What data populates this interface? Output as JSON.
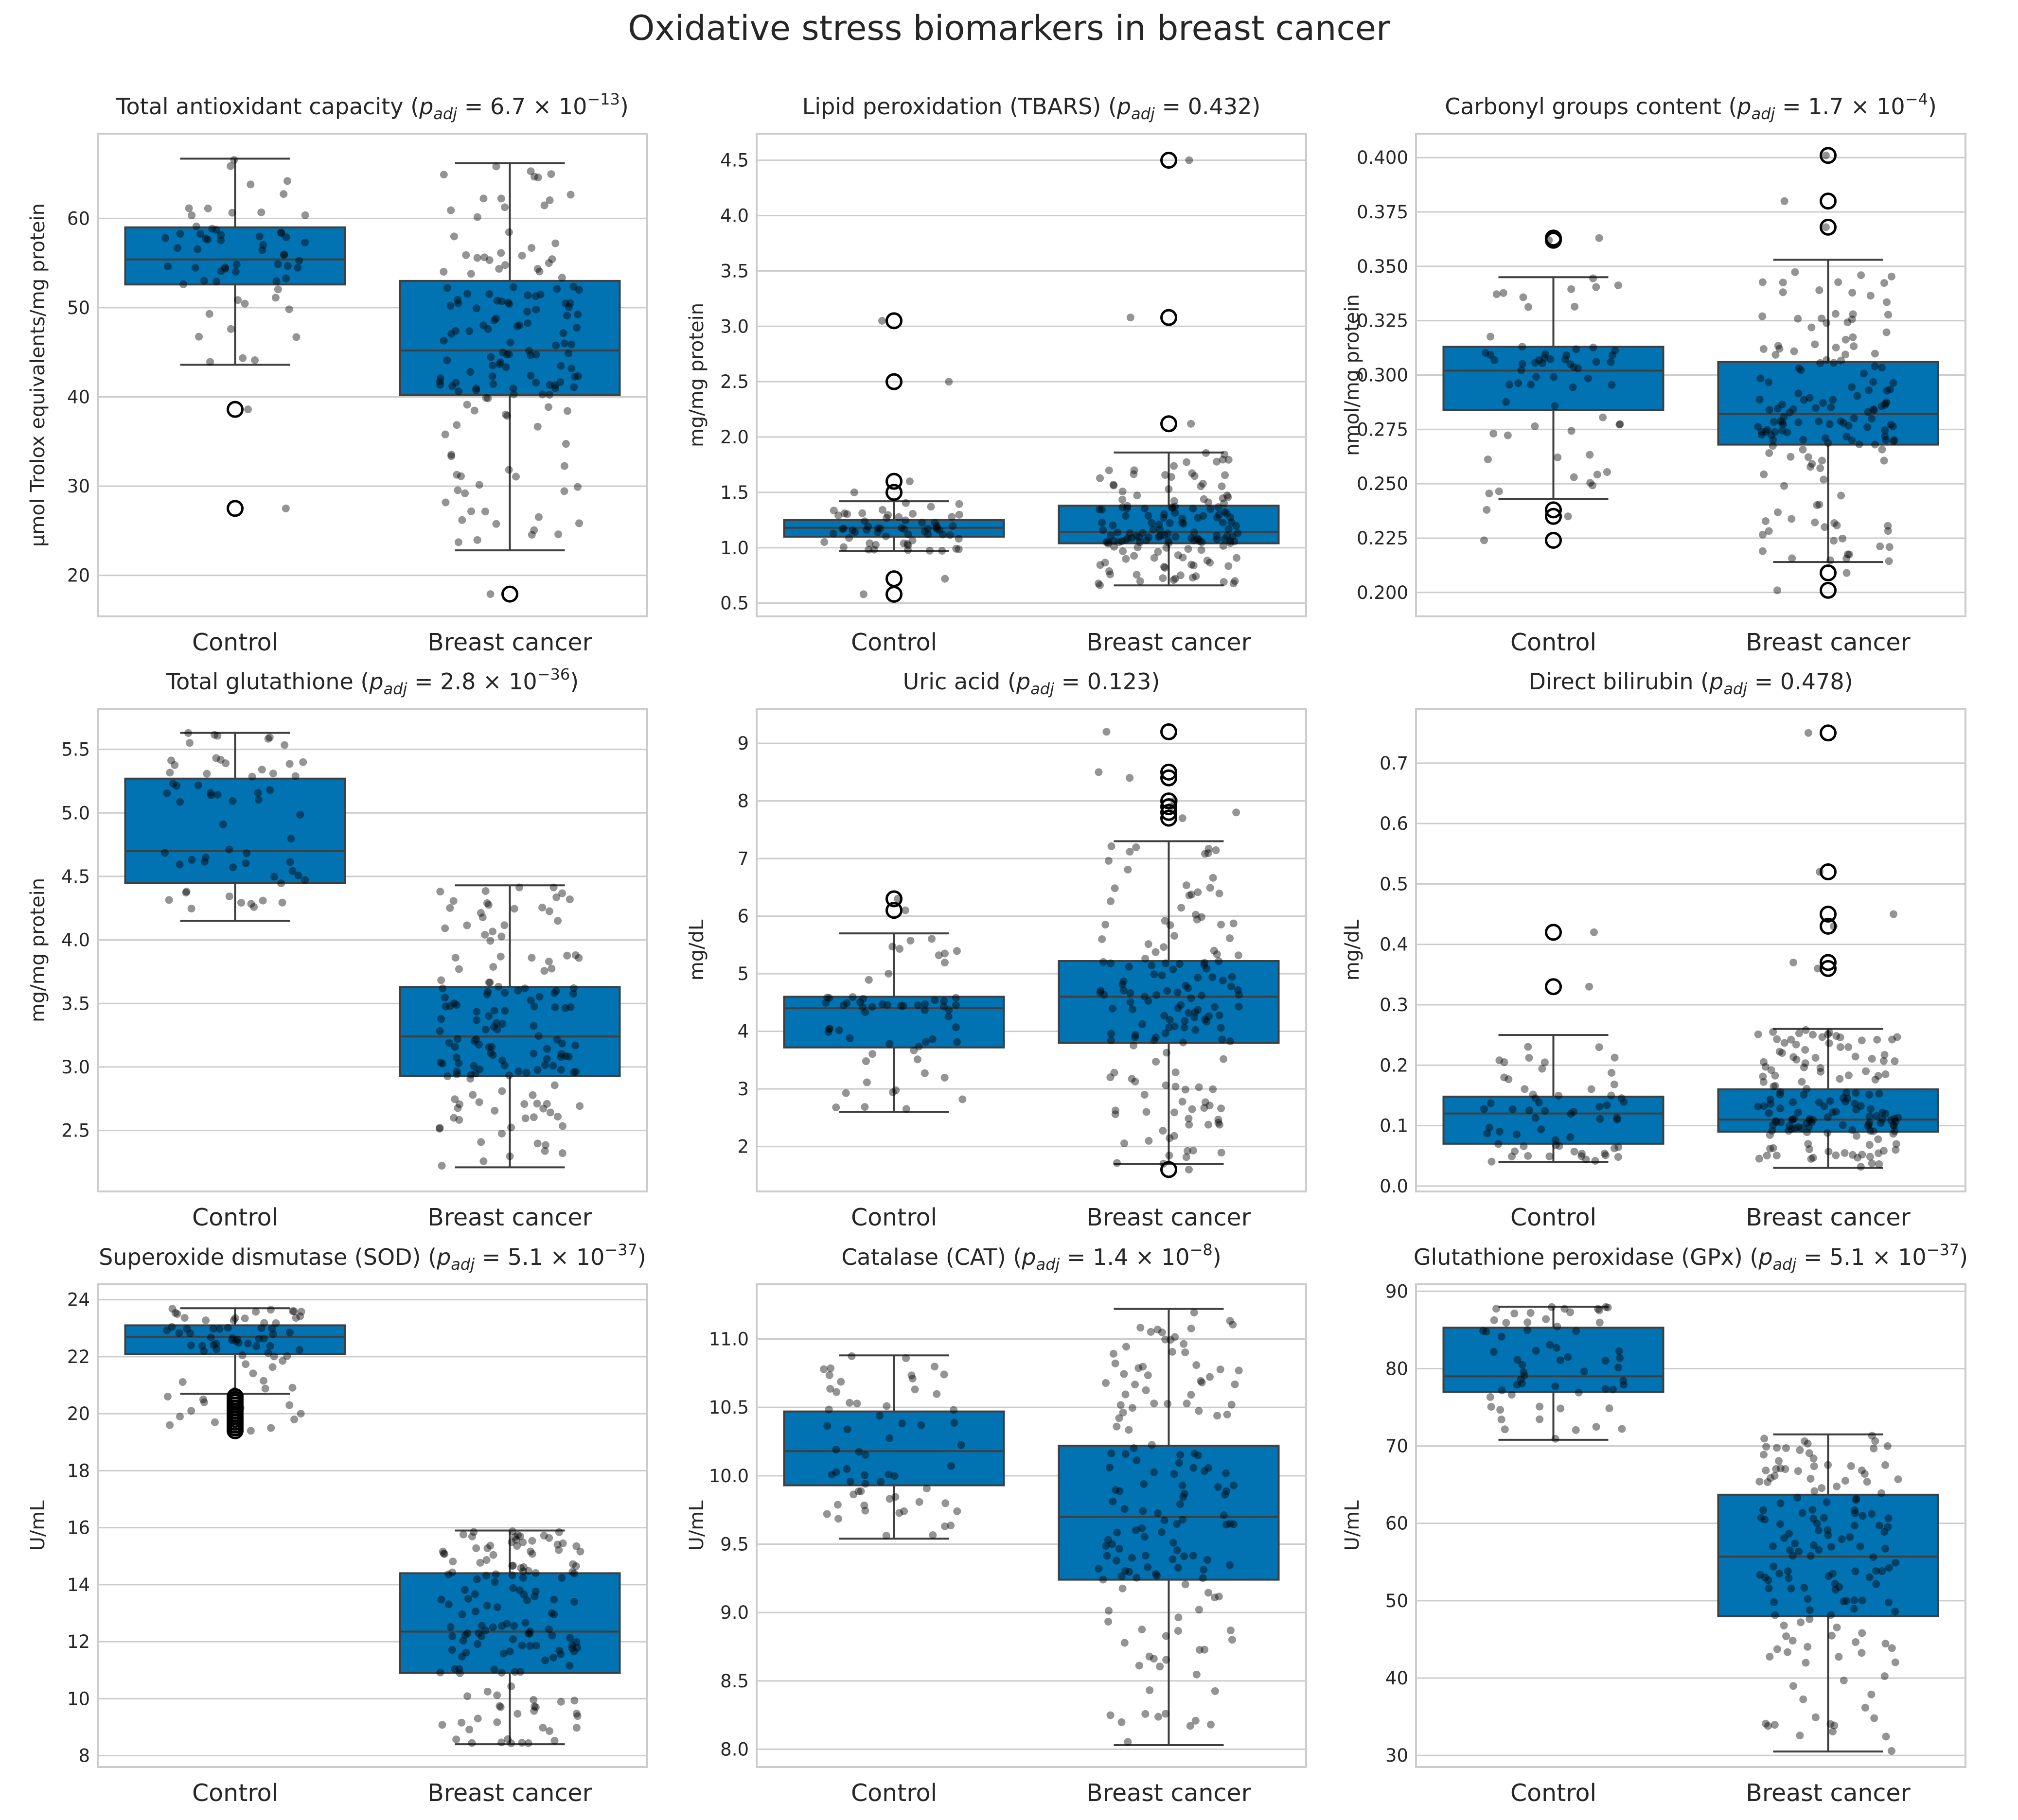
{
  "chart_data": {
    "type": "box",
    "title": "Oxidative stress biomarkers in breast cancer",
    "categories": [
      "Control",
      "Breast cancer"
    ],
    "colors": {
      "box": "#0173b2",
      "edge": "#3f3f3f",
      "grid": "#cccccc",
      "points": "#000000"
    },
    "panels": [
      {
        "name": "Total antioxidant capacity",
        "p_mantissa": "6.7",
        "p_exp": "−13",
        "ylabel": "μmol Trolox equivalents/mg protein",
        "ylim": [
          15.4,
          69.5
        ],
        "ticks": [
          20,
          30,
          40,
          50,
          60
        ],
        "tick_labels": [
          "20",
          "30",
          "40",
          "50",
          "60"
        ],
        "groups": [
          {
            "whislo": 43.6,
            "q1": 52.6,
            "med": 55.4,
            "q3": 59.0,
            "whishi": 66.7,
            "fliers": [
              38.6,
              27.5
            ],
            "n": 60
          },
          {
            "whislo": 22.8,
            "q1": 40.2,
            "med": 45.2,
            "q3": 53.0,
            "whishi": 66.2,
            "fliers": [
              17.9
            ],
            "n": 150
          }
        ]
      },
      {
        "name": "Lipid peroxidation (TBARS)",
        "p_value": "0.432",
        "ylabel": "mg/mg protein",
        "ylim": [
          0.38,
          4.74
        ],
        "ticks": [
          0.5,
          1.0,
          1.5,
          2.0,
          2.5,
          3.0,
          3.5,
          4.0,
          4.5
        ],
        "tick_labels": [
          "0.5",
          "1.0",
          "1.5",
          "2.0",
          "2.5",
          "3.0",
          "3.5",
          "4.0",
          "4.5"
        ],
        "groups": [
          {
            "whislo": 0.97,
            "q1": 1.1,
            "med": 1.18,
            "q3": 1.25,
            "whishi": 1.42,
            "fliers": [
              3.05,
              2.5,
              1.6,
              1.5,
              0.72,
              0.58
            ],
            "n": 60
          },
          {
            "whislo": 0.66,
            "q1": 1.04,
            "med": 1.14,
            "q3": 1.38,
            "whishi": 1.86,
            "fliers": [
              4.5,
              3.08,
              2.12
            ],
            "n": 150
          }
        ]
      },
      {
        "name": "Carbonyl groups content",
        "p_mantissa": "1.7",
        "p_exp": "−4",
        "ylabel": "nmol/mg protein",
        "ylim": [
          0.189,
          0.411
        ],
        "ticks": [
          0.2,
          0.225,
          0.25,
          0.275,
          0.3,
          0.325,
          0.35,
          0.375,
          0.4
        ],
        "tick_labels": [
          "0.200",
          "0.225",
          "0.250",
          "0.275",
          "0.300",
          "0.325",
          "0.350",
          "0.375",
          "0.400"
        ],
        "groups": [
          {
            "whislo": 0.243,
            "q1": 0.284,
            "med": 0.302,
            "q3": 0.313,
            "whishi": 0.345,
            "fliers": [
              0.363,
              0.362,
              0.238,
              0.235,
              0.224
            ],
            "n": 60
          },
          {
            "whislo": 0.214,
            "q1": 0.268,
            "med": 0.282,
            "q3": 0.306,
            "whishi": 0.353,
            "fliers": [
              0.401,
              0.38,
              0.368,
              0.209,
              0.201
            ],
            "n": 150
          }
        ]
      },
      {
        "name": "Total glutathione",
        "p_mantissa": "2.8",
        "p_exp": "−36",
        "ylabel": "mg/mg protein",
        "ylim": [
          2.02,
          5.82
        ],
        "ticks": [
          2.5,
          3.0,
          3.5,
          4.0,
          4.5,
          5.0,
          5.5
        ],
        "tick_labels": [
          "2.5",
          "3.0",
          "3.5",
          "4.0",
          "4.5",
          "5.0",
          "5.5"
        ],
        "groups": [
          {
            "whislo": 4.15,
            "q1": 4.45,
            "med": 4.7,
            "q3": 5.27,
            "whishi": 5.63,
            "fliers": [],
            "n": 60
          },
          {
            "whislo": 2.21,
            "q1": 2.93,
            "med": 3.24,
            "q3": 3.63,
            "whishi": 4.43,
            "fliers": [],
            "n": 150
          }
        ]
      },
      {
        "name": "Uric acid",
        "p_value": "0.123",
        "ylabel": "mg/dL",
        "ylim": [
          1.22,
          9.6
        ],
        "ticks": [
          2,
          3,
          4,
          5,
          6,
          7,
          8,
          9
        ],
        "tick_labels": [
          "2",
          "3",
          "4",
          "5",
          "6",
          "7",
          "8",
          "9"
        ],
        "groups": [
          {
            "whislo": 2.6,
            "q1": 3.72,
            "med": 4.4,
            "q3": 4.6,
            "whishi": 5.7,
            "fliers": [
              6.3,
              6.1
            ],
            "n": 60
          },
          {
            "whislo": 1.7,
            "q1": 3.8,
            "med": 4.6,
            "q3": 5.22,
            "whishi": 7.3,
            "fliers": [
              9.2,
              8.5,
              8.4,
              8.0,
              7.9,
              7.8,
              7.7,
              1.6
            ],
            "n": 150
          }
        ]
      },
      {
        "name": "Direct bilirubin",
        "p_value": "0.478",
        "ylabel": "mg/dL",
        "ylim": [
          -0.009,
          0.79
        ],
        "ticks": [
          0,
          0.1,
          0.2,
          0.3,
          0.4,
          0.5,
          0.6,
          0.7
        ],
        "tick_labels": [
          "0.0",
          "0.1",
          "0.2",
          "0.3",
          "0.4",
          "0.5",
          "0.6",
          "0.7"
        ],
        "groups": [
          {
            "whislo": 0.04,
            "q1": 0.07,
            "med": 0.12,
            "q3": 0.148,
            "whishi": 0.25,
            "fliers": [
              0.42,
              0.33
            ],
            "n": 60
          },
          {
            "whislo": 0.03,
            "q1": 0.09,
            "med": 0.11,
            "q3": 0.16,
            "whishi": 0.26,
            "fliers": [
              0.75,
              0.52,
              0.45,
              0.43,
              0.37,
              0.36
            ],
            "n": 150
          }
        ]
      },
      {
        "name": "Superoxide dismutase (SOD)",
        "p_mantissa": "5.1",
        "p_exp": "−37",
        "ylabel": "U/mL",
        "ylim": [
          7.6,
          24.54
        ],
        "ticks": [
          8,
          10,
          12,
          14,
          16,
          18,
          20,
          22,
          24
        ],
        "tick_labels": [
          "8",
          "10",
          "12",
          "14",
          "16",
          "18",
          "20",
          "22",
          "24"
        ],
        "groups": [
          {
            "whislo": 20.7,
            "q1": 22.1,
            "med": 22.7,
            "q3": 23.1,
            "whishi": 23.7,
            "fliers": [
              20.6,
              20.5,
              20.4,
              20.3,
              20.2,
              20.1,
              20.0,
              19.9,
              19.8,
              19.7,
              19.6,
              19.5,
              19.4
            ],
            "n": 60
          },
          {
            "whislo": 8.4,
            "q1": 10.9,
            "med": 12.35,
            "q3": 14.4,
            "whishi": 15.9,
            "fliers": [],
            "n": 150
          }
        ]
      },
      {
        "name": "Catalase (CAT)",
        "p_mantissa": "1.4",
        "p_exp": "−8",
        "ylabel": "U/mL",
        "ylim": [
          7.87,
          11.4
        ],
        "ticks": [
          8.0,
          8.5,
          9.0,
          9.5,
          10.0,
          10.5,
          11.0
        ],
        "tick_labels": [
          "8.0",
          "8.5",
          "9.0",
          "9.5",
          "10.0",
          "10.5",
          "11.0"
        ],
        "groups": [
          {
            "whislo": 9.54,
            "q1": 9.93,
            "med": 10.18,
            "q3": 10.47,
            "whishi": 10.88,
            "fliers": [],
            "n": 60
          },
          {
            "whislo": 8.03,
            "q1": 9.24,
            "med": 9.7,
            "q3": 10.22,
            "whishi": 11.22,
            "fliers": [],
            "n": 150
          }
        ]
      },
      {
        "name": "Glutathione peroxidase (GPx)",
        "p_mantissa": "5.1",
        "p_exp": "−37",
        "ylabel": "U/mL",
        "ylim": [
          28.5,
          90.9
        ],
        "ticks": [
          30,
          40,
          50,
          60,
          70,
          80,
          90
        ],
        "tick_labels": [
          "30",
          "40",
          "50",
          "60",
          "70",
          "80",
          "90"
        ],
        "groups": [
          {
            "whislo": 70.8,
            "q1": 77.0,
            "med": 79.0,
            "q3": 85.3,
            "whishi": 88.0,
            "fliers": [],
            "n": 60
          },
          {
            "whislo": 30.5,
            "q1": 48.0,
            "med": 55.7,
            "q3": 63.7,
            "whishi": 71.5,
            "fliers": [],
            "n": 150
          }
        ]
      }
    ]
  }
}
